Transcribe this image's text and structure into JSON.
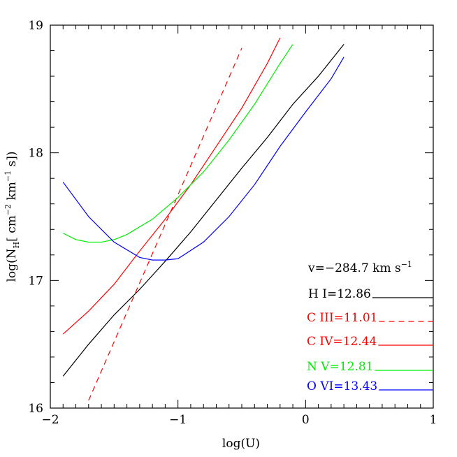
{
  "chart_data": {
    "type": "line",
    "xlabel": "log(U)",
    "ylabel": "log(N_H[ cm^-2 km^-1 s])",
    "ylabel_parts": {
      "pre": "log(N",
      "sub": "H",
      "mid": "[ cm",
      "sup1": "−2",
      "mid2": " km",
      "sup2": "−1",
      "post": " s])"
    },
    "xlim": [
      -2,
      1
    ],
    "ylim": [
      16,
      19
    ],
    "xticks": [
      -2,
      -1,
      0,
      1
    ],
    "xticklabels": [
      "−2",
      "−1",
      "0",
      "1"
    ],
    "yticks": [
      16,
      17,
      18,
      19
    ],
    "yticklabels": [
      "16",
      "17",
      "18",
      "19"
    ],
    "grid": false,
    "annotation": {
      "pre": "v=−284.7 km s",
      "sup": "−1"
    },
    "series": [
      {
        "name": "H I=12.86",
        "color": "#000000",
        "dash": "solid",
        "x": [
          -1.9,
          -1.7,
          -1.5,
          -1.3,
          -1.1,
          -0.9,
          -0.7,
          -0.5,
          -0.3,
          -0.1,
          0.1,
          0.3
        ],
        "y": [
          16.25,
          16.5,
          16.73,
          16.93,
          17.15,
          17.38,
          17.63,
          17.88,
          18.12,
          18.38,
          18.6,
          18.85
        ]
      },
      {
        "name": "C III=11.01",
        "color": "#ff0000",
        "dash": "dashed",
        "x": [
          -1.7,
          -0.5
        ],
        "y": [
          16.06,
          18.82
        ]
      },
      {
        "name": "C IV=12.44",
        "color": "#ff0000",
        "dash": "solid",
        "x": [
          -1.9,
          -1.7,
          -1.5,
          -1.3,
          -1.1,
          -0.9,
          -0.7,
          -0.5,
          -0.3,
          -0.2
        ],
        "y": [
          16.58,
          16.76,
          16.97,
          17.23,
          17.48,
          17.75,
          18.05,
          18.35,
          18.7,
          18.9
        ]
      },
      {
        "name": "N V=12.81",
        "color": "#00ee00",
        "dash": "solid",
        "x": [
          -1.9,
          -1.8,
          -1.7,
          -1.6,
          -1.5,
          -1.4,
          -1.2,
          -1.0,
          -0.8,
          -0.6,
          -0.4,
          -0.2,
          -0.1
        ],
        "y": [
          17.37,
          17.32,
          17.3,
          17.3,
          17.32,
          17.36,
          17.48,
          17.65,
          17.85,
          18.1,
          18.38,
          18.7,
          18.85
        ]
      },
      {
        "name": "O VI=13.43",
        "color": "#0000ff",
        "dash": "solid",
        "x": [
          -1.9,
          -1.7,
          -1.5,
          -1.3,
          -1.2,
          -1.1,
          -1.0,
          -0.8,
          -0.6,
          -0.4,
          -0.2,
          0.0,
          0.2,
          0.3
        ],
        "y": [
          17.77,
          17.5,
          17.3,
          17.18,
          17.16,
          17.16,
          17.17,
          17.3,
          17.5,
          17.75,
          18.05,
          18.32,
          18.58,
          18.75
        ]
      }
    ],
    "legend": {
      "placement": "lower-right",
      "entries": [
        {
          "label": "H I=12.86",
          "color": "#000000",
          "dash": "solid"
        },
        {
          "label": "C III=11.01",
          "color": "#ff0000",
          "dash": "dashed"
        },
        {
          "label": "C IV=12.44",
          "color": "#ff0000",
          "dash": "solid"
        },
        {
          "label": "N V=12.81",
          "color": "#00ee00",
          "dash": "solid"
        },
        {
          "label": "O VI=13.43",
          "color": "#0000ff",
          "dash": "solid"
        }
      ]
    }
  }
}
